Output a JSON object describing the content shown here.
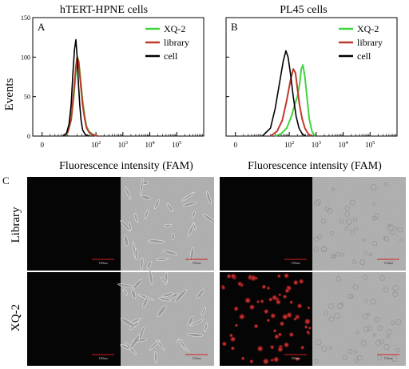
{
  "figure": {
    "ylabel": "Events",
    "row_labels": [
      "Library",
      "XQ-2"
    ],
    "panel_c_label": "C"
  },
  "chart_data": [
    {
      "type": "line",
      "panel_label": "A",
      "title": "hTERT-HPNE cells",
      "xlabel": "Fluorescence intensity (FAM)",
      "ylabel": "Events",
      "xscale": "log",
      "xlim": [
        0.45,
        1000000
      ],
      "ylim": [
        0,
        150
      ],
      "x_ticks": [
        {
          "base": "0",
          "exp": ""
        },
        {
          "base": "10",
          "exp": "2"
        },
        {
          "base": "10",
          "exp": "3"
        },
        {
          "base": "10",
          "exp": "4"
        },
        {
          "base": "10",
          "exp": "5"
        }
      ],
      "x_tick_values": [
        1,
        100,
        1000,
        10000,
        100000
      ],
      "y_ticks": [
        0,
        50,
        100,
        150
      ],
      "legend_position": "top-right",
      "series": [
        {
          "name": "XQ-2",
          "color": "#3fd43f",
          "x": [
            6,
            9,
            12,
            15,
            18,
            20,
            23,
            27,
            32,
            38,
            45,
            55,
            70,
            90,
            120
          ],
          "y": [
            0,
            5,
            20,
            50,
            80,
            100,
            95,
            70,
            45,
            25,
            12,
            6,
            3,
            1,
            0
          ]
        },
        {
          "name": "library",
          "color": "#c0392b",
          "x": [
            6,
            9,
            12,
            15,
            18,
            20,
            23,
            27,
            32,
            38,
            45,
            55,
            70,
            90,
            120
          ],
          "y": [
            0,
            5,
            22,
            55,
            88,
            100,
            92,
            65,
            40,
            22,
            10,
            5,
            2,
            1,
            0
          ]
        },
        {
          "name": "cell",
          "color": "#000000",
          "x": [
            6,
            8,
            10,
            12,
            14,
            16,
            18,
            20,
            22,
            25,
            28,
            32,
            38,
            45,
            55
          ],
          "y": [
            0,
            3,
            15,
            40,
            80,
            110,
            122,
            100,
            70,
            40,
            20,
            8,
            3,
            1,
            0
          ]
        }
      ]
    },
    {
      "type": "line",
      "panel_label": "B",
      "title": "PL45 cells",
      "xlabel": "Fluorescence intensity (FAM)",
      "xscale": "log",
      "xlim": [
        0.45,
        1000000
      ],
      "ylim": [
        0,
        150
      ],
      "x_ticks": [
        {
          "base": "0",
          "exp": ""
        },
        {
          "base": "10",
          "exp": "2"
        },
        {
          "base": "10",
          "exp": "3"
        },
        {
          "base": "10",
          "exp": "4"
        },
        {
          "base": "10",
          "exp": "5"
        }
      ],
      "x_tick_values": [
        1,
        100,
        1000,
        10000,
        100000
      ],
      "legend_position": "top-right",
      "series": [
        {
          "name": "XQ-2",
          "color": "#3fd43f",
          "x": [
            30,
            50,
            80,
            120,
            160,
            200,
            240,
            280,
            320,
            380,
            450,
            550,
            700,
            900
          ],
          "y": [
            0,
            3,
            10,
            25,
            40,
            50,
            65,
            85,
            90,
            75,
            50,
            22,
            6,
            0
          ]
        },
        {
          "name": "library",
          "color": "#c0392b",
          "x": [
            20,
            35,
            55,
            80,
            110,
            140,
            170,
            200,
            240,
            300,
            380,
            500,
            650
          ],
          "y": [
            0,
            6,
            20,
            45,
            70,
            85,
            80,
            60,
            40,
            22,
            10,
            3,
            0
          ]
        },
        {
          "name": "cell",
          "color": "#000000",
          "x": [
            10,
            20,
            30,
            45,
            60,
            75,
            90,
            110,
            140,
            180,
            230,
            300,
            400
          ],
          "y": [
            0,
            10,
            35,
            70,
            95,
            108,
            100,
            80,
            50,
            25,
            10,
            3,
            0
          ]
        }
      ]
    }
  ],
  "micrographs": {
    "scale_bar_label": "150um",
    "panels": [
      {
        "row": "Library",
        "column": "hTERT-HPNE fluorescence",
        "kind": "dark"
      },
      {
        "row": "Library",
        "column": "hTERT-HPNE brightfield",
        "kind": "brightfield-spindle"
      },
      {
        "row": "Library",
        "column": "PL45 fluorescence",
        "kind": "dark"
      },
      {
        "row": "Library",
        "column": "PL45 brightfield",
        "kind": "brightfield-round"
      },
      {
        "row": "XQ-2",
        "column": "hTERT-HPNE fluorescence",
        "kind": "dark"
      },
      {
        "row": "XQ-2",
        "column": "hTERT-HPNE brightfield",
        "kind": "brightfield-spindle"
      },
      {
        "row": "XQ-2",
        "column": "PL45 fluorescence",
        "kind": "red-dots"
      },
      {
        "row": "XQ-2",
        "column": "PL45 brightfield",
        "kind": "brightfield-round"
      }
    ]
  }
}
